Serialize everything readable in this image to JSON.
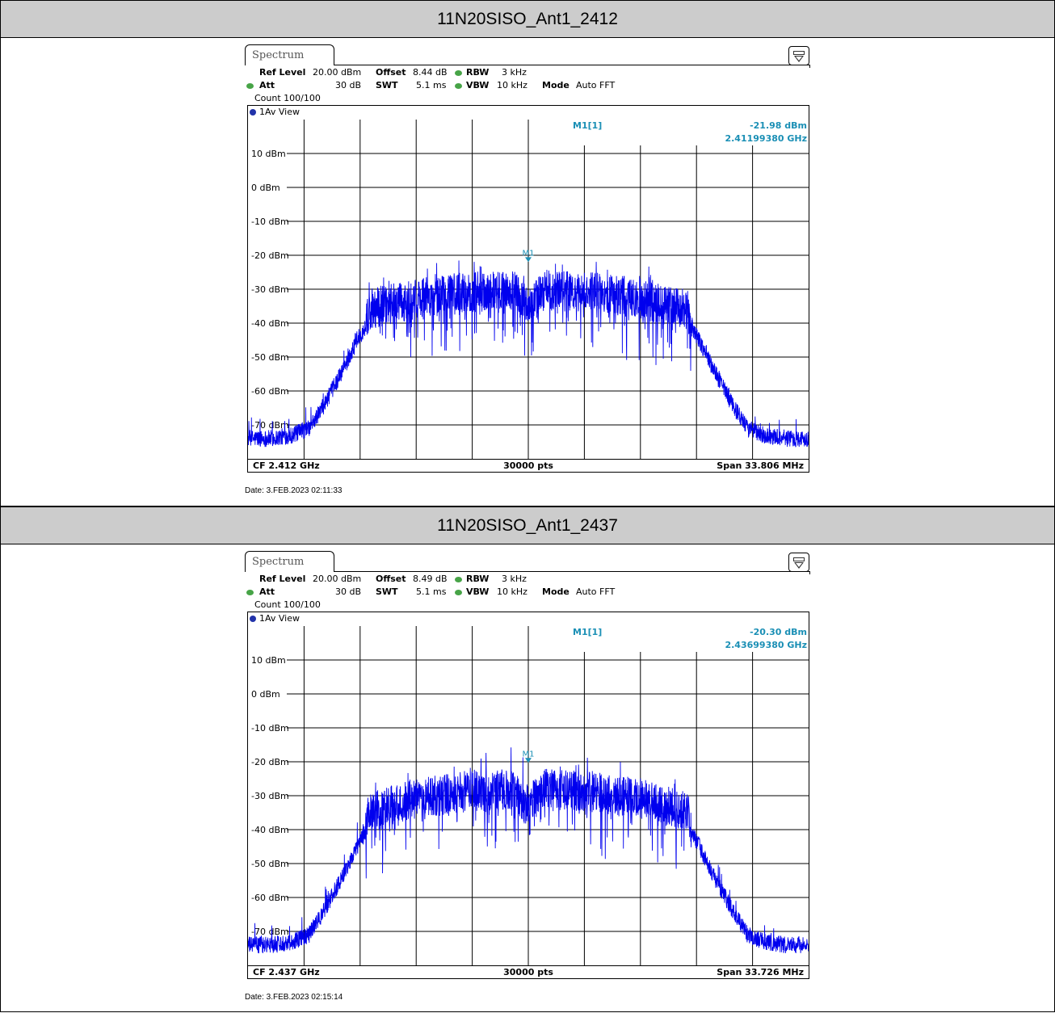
{
  "chart_data": [
    {
      "type": "line",
      "title": "11N20SISO_Ant1_2412",
      "tab_label": "Spectrum",
      "params": {
        "ref_level_label": "Ref Level",
        "ref_level": "20.00 dBm",
        "offset_label": "Offset",
        "offset": "8.44 dB",
        "rbw_label": "RBW",
        "rbw": "3 kHz",
        "att_label": "Att",
        "att": "30 dB",
        "swt_label": "SWT",
        "swt": "5.1 ms",
        "vbw_label": "VBW",
        "vbw": "10 kHz",
        "mode_label": "Mode",
        "mode": "Auto FFT",
        "count": "Count 100/100"
      },
      "view_label": "1Av View",
      "marker": {
        "name": "M1",
        "label": "M1[1]",
        "level": "-21.98 dBm",
        "freq": "2.41199380 GHz",
        "x_mhz": 2412.0,
        "y_dbm": -21.98
      },
      "y_ticks": [
        "10 dBm",
        "0 dBm",
        "-10 dBm",
        "-20 dBm",
        "-30 dBm",
        "-40 dBm",
        "-50 dBm",
        "-60 dBm",
        "-70 dBm"
      ],
      "ylim": [
        -80,
        20
      ],
      "center_mhz": 2412.0,
      "span_mhz": 33.806,
      "footer_left": "CF 2.412 GHz",
      "footer_center": "30000 pts",
      "footer_right": "Span 33.806 MHz",
      "date": "Date: 3.FEB.2023  02:11:33",
      "envelope": {
        "x_offset_mhz": [
          -16.9,
          -15.5,
          -14.2,
          -13.2,
          -12.3,
          -11.2,
          -10.2,
          -9.8,
          -9.6,
          -7.0,
          -4.0,
          -1.0,
          0,
          1.0,
          4.0,
          7.0,
          9.6,
          9.8,
          10.2,
          11.2,
          12.3,
          13.2,
          14.2,
          15.5,
          16.9
        ],
        "level_dbm": [
          -74,
          -74,
          -73,
          -71,
          -64,
          -54,
          -44,
          -41,
          -36,
          -33,
          -31,
          -30,
          -35,
          -30,
          -31,
          -33,
          -36,
          -41,
          -44,
          -54,
          -64,
          -71,
          -73,
          -74,
          -74
        ]
      },
      "series": [
        {
          "color": "#0000ee"
        }
      ]
    },
    {
      "type": "line",
      "title": "11N20SISO_Ant1_2437",
      "tab_label": "Spectrum",
      "params": {
        "ref_level_label": "Ref Level",
        "ref_level": "20.00 dBm",
        "offset_label": "Offset",
        "offset": "8.49 dB",
        "rbw_label": "RBW",
        "rbw": "3 kHz",
        "att_label": "Att",
        "att": "30 dB",
        "swt_label": "SWT",
        "swt": "5.1 ms",
        "vbw_label": "VBW",
        "vbw": "10 kHz",
        "mode_label": "Mode",
        "mode": "Auto FFT",
        "count": "Count 100/100"
      },
      "view_label": "1Av View",
      "marker": {
        "name": "M1",
        "label": "M1[1]",
        "level": "-20.30 dBm",
        "freq": "2.43699380 GHz",
        "x_mhz": 2437.0,
        "y_dbm": -20.3
      },
      "y_ticks": [
        "10 dBm",
        "0 dBm",
        "-10 dBm",
        "-20 dBm",
        "-30 dBm",
        "-40 dBm",
        "-50 dBm",
        "-60 dBm",
        "-70 dBm"
      ],
      "ylim": [
        -80,
        20
      ],
      "center_mhz": 2437.0,
      "span_mhz": 33.726,
      "footer_left": "CF 2.437 GHz",
      "footer_center": "30000 pts",
      "footer_right": "Span 33.726 MHz",
      "date": "Date: 3.FEB.2023  02:15:14",
      "envelope": {
        "x_offset_mhz": [
          -16.9,
          -15.5,
          -14.2,
          -13.2,
          -12.3,
          -11.2,
          -10.2,
          -9.8,
          -9.6,
          -7.0,
          -4.0,
          -1.0,
          0,
          1.0,
          4.0,
          7.0,
          9.6,
          9.8,
          10.2,
          11.2,
          12.3,
          13.2,
          14.2,
          15.5,
          16.9
        ],
        "level_dbm": [
          -74,
          -74,
          -73,
          -71,
          -64,
          -54,
          -44,
          -41,
          -35,
          -31,
          -29,
          -28,
          -33,
          -28,
          -29,
          -31,
          -35,
          -41,
          -44,
          -54,
          -64,
          -71,
          -73,
          -74,
          -74
        ]
      },
      "series": [
        {
          "color": "#0000ee"
        }
      ]
    }
  ],
  "colors": {
    "trace": "#0000ee",
    "marker_text": "#1a8fb5",
    "header_bg": "#cccccc",
    "status_dot": "#47a447"
  }
}
